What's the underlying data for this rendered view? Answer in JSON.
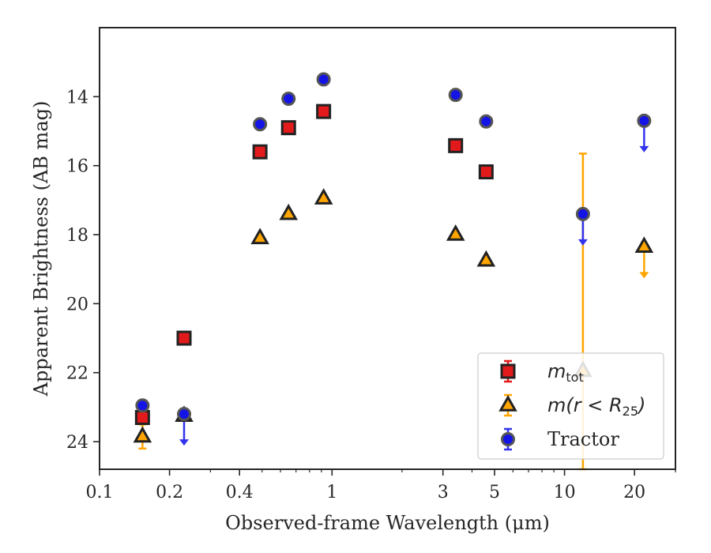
{
  "chart_data": {
    "type": "scatter",
    "title": "",
    "xlabel": "Observed-frame Wavelength (μm)",
    "ylabel": "Apparent Brightness (AB mag)",
    "x_scale": "log",
    "xlim": [
      0.1,
      30
    ],
    "ylim": [
      24.8,
      12.0
    ],
    "y_inverted": true,
    "x_ticks": [
      {
        "value": 0.1,
        "label": "0.1"
      },
      {
        "value": 0.2,
        "label": "0.2"
      },
      {
        "value": 0.4,
        "label": "0.4"
      },
      {
        "value": 1,
        "label": "1"
      },
      {
        "value": 3,
        "label": "3"
      },
      {
        "value": 5,
        "label": "5"
      },
      {
        "value": 10,
        "label": "10"
      },
      {
        "value": 20,
        "label": "20"
      }
    ],
    "y_ticks": [
      {
        "value": 14,
        "label": "14"
      },
      {
        "value": 16,
        "label": "16"
      },
      {
        "value": 18,
        "label": "18"
      },
      {
        "value": 20,
        "label": "20"
      },
      {
        "value": 22,
        "label": "22"
      },
      {
        "value": 24,
        "label": "24"
      }
    ],
    "grid": false,
    "legend_position": "lower-right",
    "series": [
      {
        "name": "m_tot",
        "label_parts": {
          "main": "m",
          "sub": "tot"
        },
        "marker": "square",
        "color": "#e31a1c",
        "edge_color": "#222222",
        "error_color": "#e31a1c",
        "points": [
          {
            "x": 0.153,
            "y": 23.3
          },
          {
            "x": 0.231,
            "y": 21.0
          },
          {
            "x": 0.49,
            "y": 15.6
          },
          {
            "x": 0.65,
            "y": 14.9
          },
          {
            "x": 0.92,
            "y": 14.43
          },
          {
            "x": 3.4,
            "y": 15.42
          },
          {
            "x": 4.6,
            "y": 16.18
          }
        ]
      },
      {
        "name": "m(r < R25)",
        "label_parts": {
          "main": "m(r < R",
          "sub": "25",
          "tail": ")"
        },
        "marker": "triangle",
        "color": "#ffa500",
        "edge_color": "#222222",
        "error_color": "#ffa500",
        "points": [
          {
            "x": 0.153,
            "y": 23.85,
            "yerr": 0.35
          },
          {
            "x": 0.231,
            "y": 23.25
          },
          {
            "x": 0.49,
            "y": 18.1
          },
          {
            "x": 0.65,
            "y": 17.4
          },
          {
            "x": 0.92,
            "y": 16.95
          },
          {
            "x": 3.4,
            "y": 18.0
          },
          {
            "x": 4.6,
            "y": 18.75
          },
          {
            "x": 12.0,
            "y": 21.95,
            "err_low": 15.65,
            "err_high": 24.8
          },
          {
            "x": 22.0,
            "y": 18.35,
            "upper_limit": true
          }
        ]
      },
      {
        "name": "Tractor",
        "marker": "circle",
        "color": "#1414e6",
        "edge_color": "#555555",
        "error_color": "#3333ee",
        "points": [
          {
            "x": 0.153,
            "y": 22.95,
            "yerr": 0.15
          },
          {
            "x": 0.231,
            "y": 23.2,
            "upper_limit": true
          },
          {
            "x": 0.49,
            "y": 14.8
          },
          {
            "x": 0.65,
            "y": 14.06
          },
          {
            "x": 0.92,
            "y": 13.5
          },
          {
            "x": 3.4,
            "y": 13.95
          },
          {
            "x": 4.6,
            "y": 14.72
          },
          {
            "x": 12.0,
            "y": 17.4,
            "upper_limit": true
          },
          {
            "x": 22.0,
            "y": 14.7,
            "upper_limit": true
          }
        ]
      }
    ]
  }
}
